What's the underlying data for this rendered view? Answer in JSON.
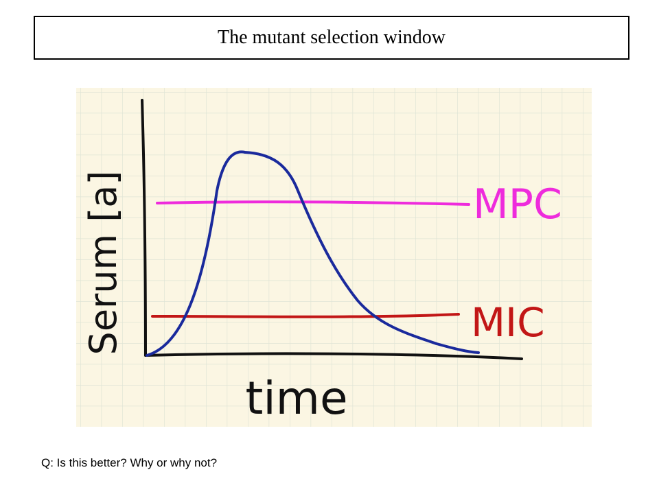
{
  "slide": {
    "title": "The mutant selection window",
    "question": "Q: Is this better? Why or why not?"
  },
  "sketch": {
    "y_axis_label": "Serum [a]",
    "x_axis_label": "time",
    "upper_line_label": "MPC",
    "lower_line_label": "MIC",
    "colors": {
      "paper": "#fbf6e3",
      "grid": "#dfe4d6",
      "axes": "#111111",
      "curve": "#1a2a9c",
      "mpc": "#ee2bdc",
      "mic": "#c21616"
    }
  }
}
